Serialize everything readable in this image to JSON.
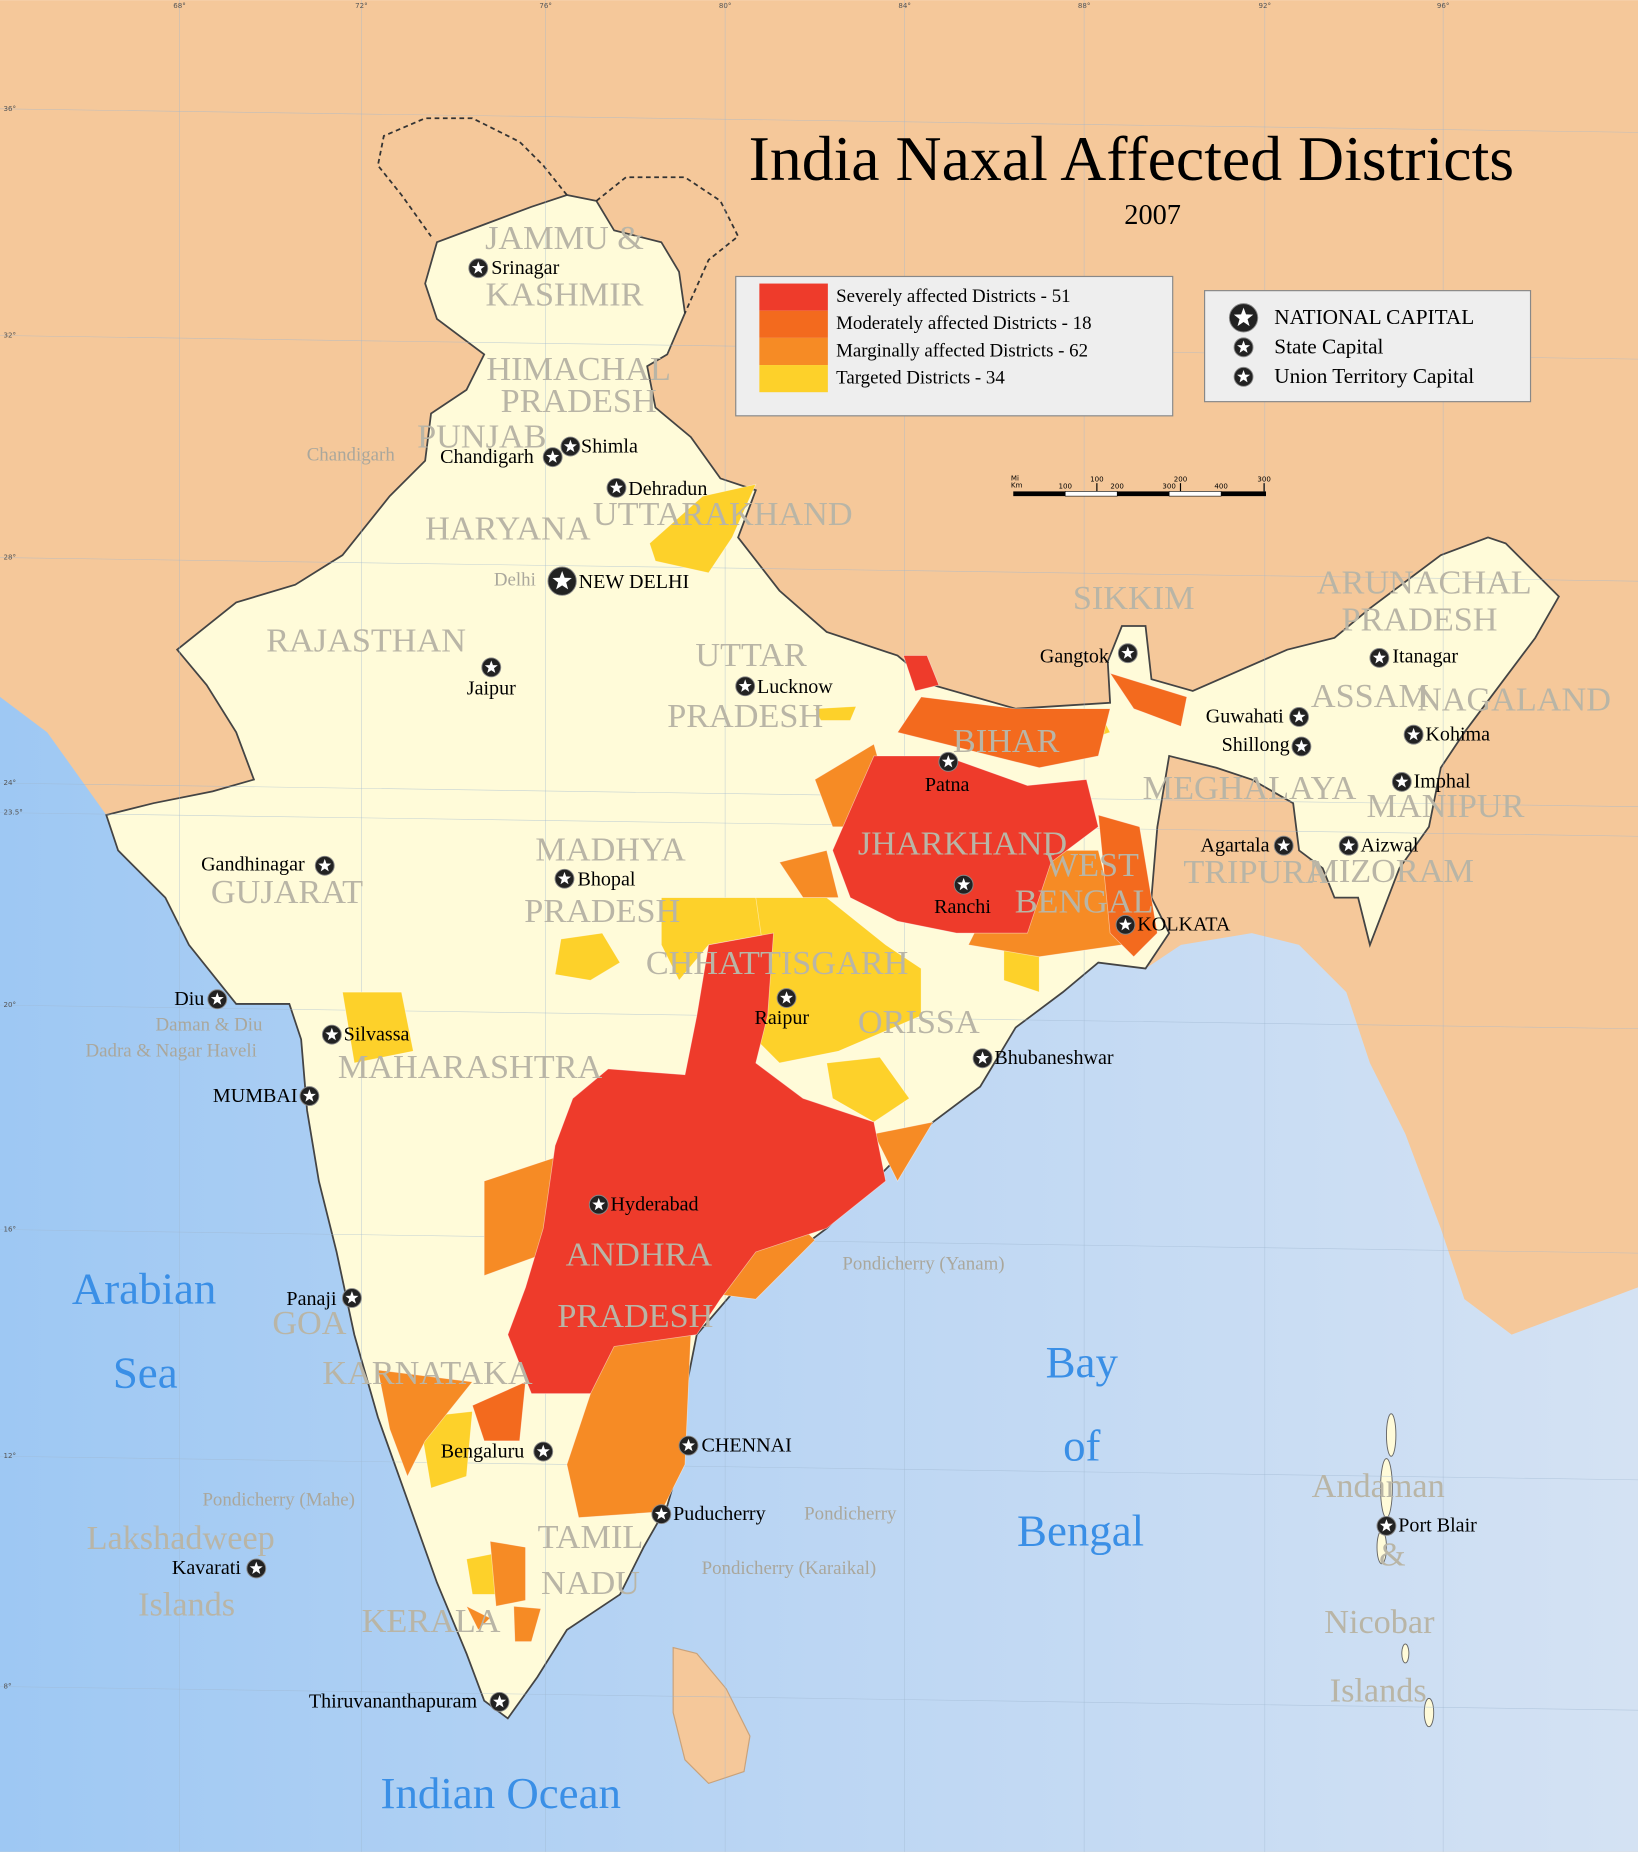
{
  "title": "India Naxal Affected Districts",
  "subtitle": "2007",
  "legend": {
    "items": [
      {
        "label": "Severely affected Districts - 51",
        "color": "#ee3b2b"
      },
      {
        "label": "Moderately affected Districts - 18",
        "color": "#f36a1e"
      },
      {
        "label": "Marginally affected Districts - 62",
        "color": "#f68b25"
      },
      {
        "label": "Targeted Districts - 34",
        "color": "#fdd12a"
      }
    ]
  },
  "capital_legend": [
    "NATIONAL CAPITAL",
    "State Capital",
    "Union Territory Capital"
  ],
  "national_capitals": [
    "NEW DELHI"
  ],
  "state_capitals": [
    "Srinagar",
    "Shimla",
    "Chandigarh",
    "Dehradun",
    "Jaipur",
    "Lucknow",
    "Gandhinagar",
    "Bhopal",
    "Patna",
    "Ranchi",
    "KOLKATA",
    "Raipur",
    "Bhubaneshwar",
    "Hyderabad",
    "MUMBAI",
    "Panaji",
    "Bengaluru",
    "CHENNAI",
    "Thiruvananthapuram",
    "Gangtok",
    "Guwahati",
    "Shillong",
    "Itanagar",
    "Kohima",
    "Imphal",
    "Aizwal",
    "Agartala"
  ],
  "union_territory_capitals": [
    "Diu",
    "Silvassa",
    "Puducherry",
    "Kavarati",
    "Port Blair"
  ],
  "region_labels": [
    "JAMMU &",
    "KASHMIR",
    "HIMACHAL",
    "PRADESH",
    "PUNJAB",
    "HARYANA",
    "UTTARAKHAND",
    "RAJASTHAN",
    "UTTAR",
    "PRADESH",
    "BIHAR",
    "JHARKHAND",
    "WEST",
    "BENGAL",
    "SIKKIM",
    "ARUNACHAL",
    "PRADESH",
    "ASSAM",
    "NAGALAND",
    "MEGHALAYA",
    "MANIPUR",
    "TRIPURA",
    "MIZORAM",
    "GUJARAT",
    "MADHYA",
    "PRADESH",
    "CHHATTISGARH",
    "ORISSA",
    "MAHARASHTRA",
    "ANDHRA",
    "PRADESH",
    "GOA",
    "KARNATAKA",
    "TAMIL",
    "NADU",
    "KERALA"
  ],
  "ut_labels": [
    "Chandigarh",
    "Delhi",
    "Daman & Diu",
    "Dadra & Nagar Haveli",
    "Pondicherry (Yanam)",
    "Pondicherry (Mahe)",
    "Pondicherry",
    "Pondicherry (Karaikal)"
  ],
  "island_labels": [
    "Lakshadweep",
    "Islands",
    "Andaman",
    "&",
    "Nicobar",
    "Islands"
  ],
  "seas": [
    "Arabian",
    "Sea",
    "Bay",
    "of",
    "Bengal",
    "Indian Ocean"
  ],
  "longitudes": [
    "68°",
    "72°",
    "76°",
    "80°",
    "84°",
    "88°",
    "92°",
    "96°"
  ],
  "latitudes": [
    "36°",
    "32°",
    "28°",
    "24°",
    "23.5°",
    "20°",
    "16°",
    "12°",
    "8°"
  ],
  "scale_bar": {
    "mi": "Mi",
    "km": "Km",
    "mi_ticks": [
      100,
      200,
      300
    ],
    "km_ticks": [
      100,
      200,
      300,
      400
    ]
  }
}
